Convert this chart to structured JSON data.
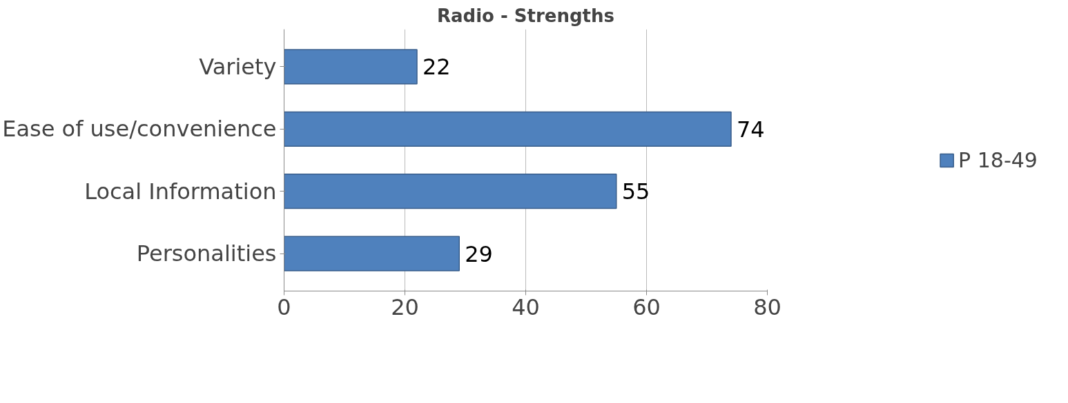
{
  "chart_data": {
    "type": "bar",
    "orientation": "horizontal",
    "title": "Radio - Strengths",
    "categories": [
      "Variety",
      "Ease of use/convenience",
      "Local Information",
      "Personalities"
    ],
    "series": [
      {
        "name": "P 18-49",
        "color": "#4f81bd",
        "values": [
          22,
          74,
          55,
          29
        ]
      }
    ],
    "xlim": [
      0,
      80
    ],
    "xticks": [
      0,
      20,
      40,
      60,
      80
    ],
    "grid": "x",
    "legend": "right",
    "data_labels": true
  }
}
